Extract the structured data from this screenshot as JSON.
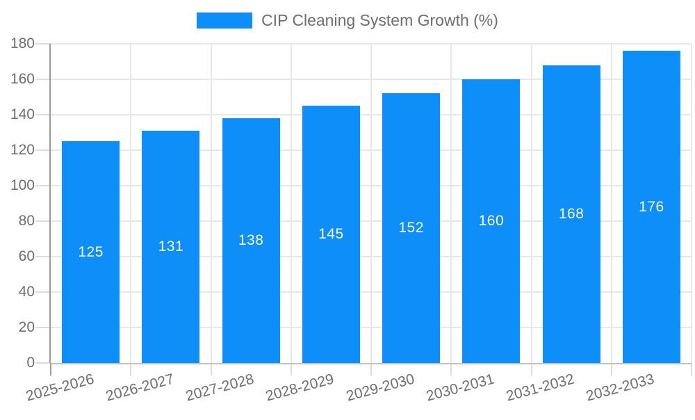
{
  "legend": {
    "series_label": "CIP Cleaning System Growth (%)"
  },
  "chart_data": {
    "type": "bar",
    "title": "CIP Cleaning System Growth (%)",
    "categories": [
      "2025-2026",
      "2026-2027",
      "2027-2028",
      "2028-2029",
      "2029-2030",
      "2030-2031",
      "2031-2032",
      "2032-2033"
    ],
    "values": [
      125,
      131,
      138,
      145,
      152,
      160,
      168,
      176
    ],
    "value_labels": [
      "125",
      "131",
      "138",
      "145",
      "152",
      "160",
      "168",
      "176"
    ],
    "xlabel": "",
    "ylabel": "",
    "ylim": [
      0,
      180
    ],
    "ytick_step": 20,
    "ytick_labels": [
      "0",
      "20",
      "40",
      "60",
      "80",
      "100",
      "120",
      "140",
      "160",
      "180"
    ],
    "xtick_angle_deg": -15,
    "grid": true,
    "legend_position": "top",
    "value_label_position": "inside-center"
  },
  "colors": {
    "bar": "#0d8ef8",
    "value_label": "#ffffff",
    "axis_text": "#6e6e6e",
    "grid_line": "#e7e7e7",
    "y_axis_line": "#9a9a9a",
    "x_axis_line": "#c2c2c2",
    "tick_mark": "#dcdcdc",
    "background": "#ffffff"
  }
}
